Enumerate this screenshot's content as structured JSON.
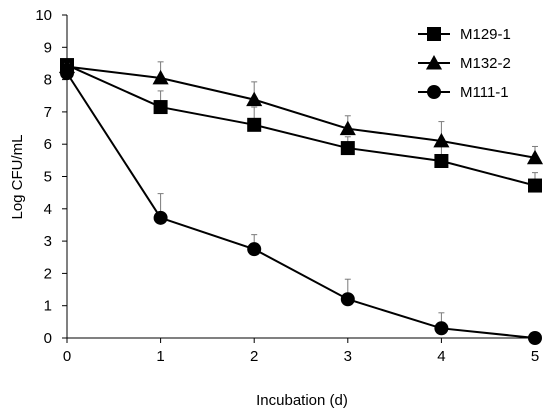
{
  "chart_data": {
    "type": "line",
    "title": "",
    "xlabel": "Incubation (d)",
    "ylabel": "Log CFU/mL",
    "x": [
      0,
      1,
      2,
      3,
      4,
      5
    ],
    "xlim": [
      0,
      5
    ],
    "ylim": [
      0,
      10
    ],
    "x_ticks": [
      "0",
      "1",
      "2",
      "3",
      "4",
      "5"
    ],
    "y_ticks": [
      "0",
      "1",
      "2",
      "3",
      "4",
      "5",
      "6",
      "7",
      "8",
      "9",
      "10"
    ],
    "grid": false,
    "legend_position": "top-right",
    "series": [
      {
        "name": "M129-1",
        "marker": "square",
        "color": "#000000",
        "values": [
          8.45,
          7.15,
          6.6,
          5.88,
          5.48,
          4.72
        ],
        "errors": [
          0.1,
          0.5,
          0.55,
          0.35,
          0.6,
          0.4
        ]
      },
      {
        "name": "M132-2",
        "marker": "triangle",
        "color": "#000000",
        "values": [
          8.4,
          8.05,
          7.38,
          6.48,
          6.1,
          5.58
        ],
        "errors": [
          0.1,
          0.5,
          0.55,
          0.4,
          0.6,
          0.35
        ]
      },
      {
        "name": "M111-1",
        "marker": "circle",
        "color": "#000000",
        "values": [
          8.2,
          3.72,
          2.75,
          1.2,
          0.3,
          0.0
        ],
        "errors": [
          0.1,
          0.75,
          0.45,
          0.62,
          0.48,
          0.0
        ]
      }
    ]
  }
}
